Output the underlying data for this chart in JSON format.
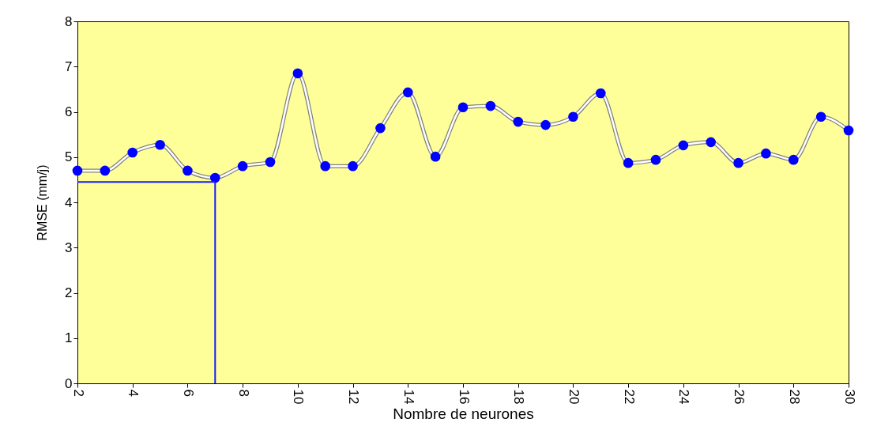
{
  "chart_data": {
    "type": "line",
    "xlabel": "Nombre de neurones",
    "ylabel": "RMSE (mm/j)",
    "x": [
      2,
      3,
      4,
      5,
      6,
      7,
      8,
      9,
      10,
      11,
      12,
      13,
      14,
      15,
      16,
      17,
      18,
      19,
      20,
      21,
      22,
      23,
      24,
      25,
      26,
      27,
      28,
      29,
      30
    ],
    "series": [
      {
        "color": "#0000ff",
        "marker": "circle",
        "values": [
          4.7,
          4.7,
          5.1,
          5.27,
          4.7,
          4.54,
          4.8,
          4.89,
          6.85,
          4.8,
          4.8,
          5.64,
          6.43,
          5.01,
          6.1,
          6.13,
          5.78,
          5.71,
          5.89,
          6.41,
          4.87,
          4.94,
          5.26,
          5.33,
          4.87,
          5.08,
          4.94,
          5.89,
          5.59
        ]
      }
    ],
    "ref_lines": [
      {
        "axis": "x",
        "value": 7,
        "color": "#1a1aff"
      },
      {
        "axis": "y",
        "value": 4.45,
        "color": "#1a1aff"
      }
    ],
    "xlim": [
      2,
      30
    ],
    "xticks": [
      2,
      4,
      6,
      8,
      10,
      12,
      14,
      16,
      18,
      20,
      22,
      24,
      26,
      28,
      30
    ],
    "ylim": [
      0,
      8
    ],
    "yticks": [
      0,
      1,
      2,
      3,
      4,
      5,
      6,
      7,
      8
    ]
  }
}
